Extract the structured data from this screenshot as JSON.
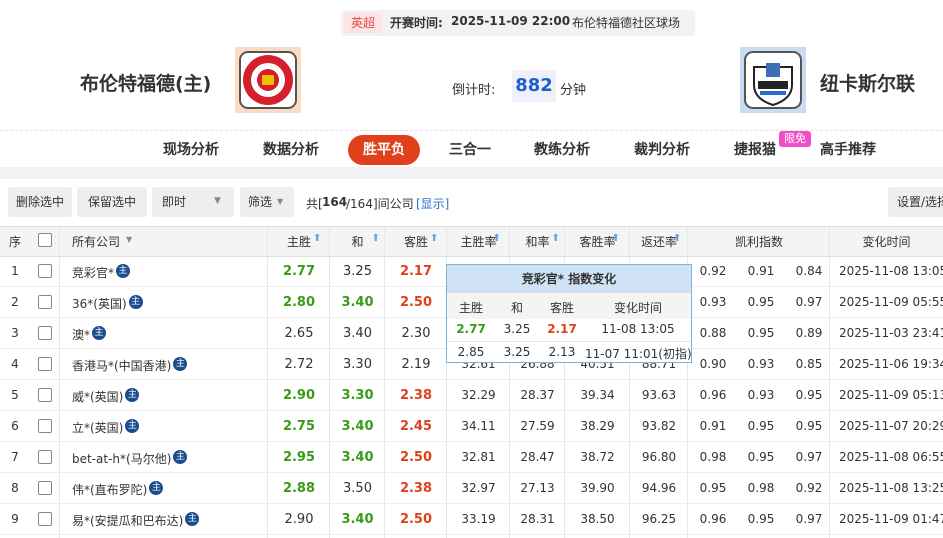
{
  "header": {
    "league": "英超",
    "kickoff_label": "开赛时间:",
    "kickoff": "2025-11-09 22:00",
    "venue": "布伦特福德社区球场",
    "home": "布伦特福德(主)",
    "away": "纽卡斯尔联",
    "countdown_label": "倒计时:",
    "countdown": "882",
    "countdown_unit": "分钟"
  },
  "tabs": {
    "items": [
      "现场分析",
      "数据分析",
      "胜平负",
      "三合一",
      "教练分析",
      "裁判分析",
      "捷报猫",
      "高手推荐"
    ],
    "active": 2,
    "badge": "限免",
    "badge_on": 6
  },
  "toolbar": {
    "buttons": [
      "删除选中",
      "保留选中"
    ],
    "selects": [
      "即时",
      "筛选"
    ],
    "count_prefix": "共[",
    "count": "164",
    "count_suffix": "/164]间公司",
    "link": "[显示]",
    "right_button": "设置/选择"
  },
  "table": {
    "headers": [
      "序",
      "所有公司",
      "主胜",
      "和",
      "客胜",
      "主胜率",
      "和率",
      "客胜率",
      "返还率",
      "凯利指数",
      "变化时间"
    ],
    "main_icon": "主",
    "up_color": "#3a9a1a",
    "down_color": "#e0401c",
    "flat_color": "#333333",
    "rows": [
      {
        "index": "1",
        "company": "竞彩官*",
        "odds": [
          "2.77",
          "3.25",
          "2.17"
        ],
        "trend": [
          "up",
          "flat",
          "down"
        ],
        "kelly": [
          "0.92",
          "0.91",
          "0.84"
        ],
        "time": "2025-11-08 13:05"
      },
      {
        "index": "2",
        "company": "36*(英国)",
        "odds": [
          "2.80",
          "3.40",
          "2.50"
        ],
        "trend": [
          "up",
          "up",
          "down"
        ],
        "kelly": [
          "0.93",
          "0.95",
          "0.97"
        ],
        "time": "2025-11-09 05:55"
      },
      {
        "index": "3",
        "company": "澳*",
        "odds": [
          "2.65",
          "3.40",
          "2.30"
        ],
        "trend": [
          "flat",
          "flat",
          "flat"
        ],
        "kelly": [
          "0.88",
          "0.95",
          "0.89"
        ],
        "time": "2025-11-03 23:41"
      },
      {
        "index": "4",
        "company": "香港马*(中国香港)",
        "odds": [
          "2.72",
          "3.30",
          "2.19"
        ],
        "trend": [
          "flat",
          "flat",
          "flat"
        ],
        "rates": [
          "32.61",
          "26.88",
          "40.51",
          "88.71"
        ],
        "kelly": [
          "0.90",
          "0.93",
          "0.85"
        ],
        "time": "2025-11-06 19:34"
      },
      {
        "index": "5",
        "company": "威*(英国)",
        "odds": [
          "2.90",
          "3.30",
          "2.38"
        ],
        "trend": [
          "up",
          "up",
          "down"
        ],
        "rates": [
          "32.29",
          "28.37",
          "39.34",
          "93.63"
        ],
        "kelly": [
          "0.96",
          "0.93",
          "0.95"
        ],
        "time": "2025-11-09 05:13"
      },
      {
        "index": "6",
        "company": "立*(英国)",
        "odds": [
          "2.75",
          "3.40",
          "2.45"
        ],
        "trend": [
          "up",
          "up",
          "down"
        ],
        "rates": [
          "34.11",
          "27.59",
          "38.29",
          "93.82"
        ],
        "kelly": [
          "0.91",
          "0.95",
          "0.95"
        ],
        "time": "2025-11-07 20:29"
      },
      {
        "index": "7",
        "company": "bet-at-h*(马尔他)",
        "odds": [
          "2.95",
          "3.40",
          "2.50"
        ],
        "trend": [
          "up",
          "up",
          "down"
        ],
        "rates": [
          "32.81",
          "28.47",
          "38.72",
          "96.80"
        ],
        "kelly": [
          "0.98",
          "0.95",
          "0.97"
        ],
        "time": "2025-11-08 06:55"
      },
      {
        "index": "8",
        "company": "伟*(直布罗陀)",
        "odds": [
          "2.88",
          "3.50",
          "2.38"
        ],
        "trend": [
          "up",
          "flat",
          "down"
        ],
        "rates": [
          "32.97",
          "27.13",
          "39.90",
          "94.96"
        ],
        "kelly": [
          "0.95",
          "0.98",
          "0.92"
        ],
        "time": "2025-11-08 13:25"
      },
      {
        "index": "9",
        "company": "易*(安提瓜和巴布达)",
        "odds": [
          "2.90",
          "3.40",
          "2.50"
        ],
        "trend": [
          "flat",
          "up",
          "down"
        ],
        "rates": [
          "33.19",
          "28.31",
          "38.50",
          "96.25"
        ],
        "kelly": [
          "0.96",
          "0.95",
          "0.97"
        ],
        "time": "2025-11-09 01:47"
      }
    ]
  },
  "popup": {
    "title": "竞彩官* 指数变化",
    "headers": [
      "主胜",
      "和",
      "客胜",
      "变化时间"
    ],
    "rows": [
      {
        "cells": [
          "2.77",
          "3.25",
          "2.17",
          "11-08 13:05"
        ],
        "trend": [
          "up",
          "flat",
          "down",
          "flat"
        ]
      },
      {
        "cells": [
          "2.85",
          "3.25",
          "2.13",
          "11-07 11:01(初指)"
        ],
        "trend": [
          "flat",
          "flat",
          "flat",
          "flat"
        ]
      }
    ]
  }
}
